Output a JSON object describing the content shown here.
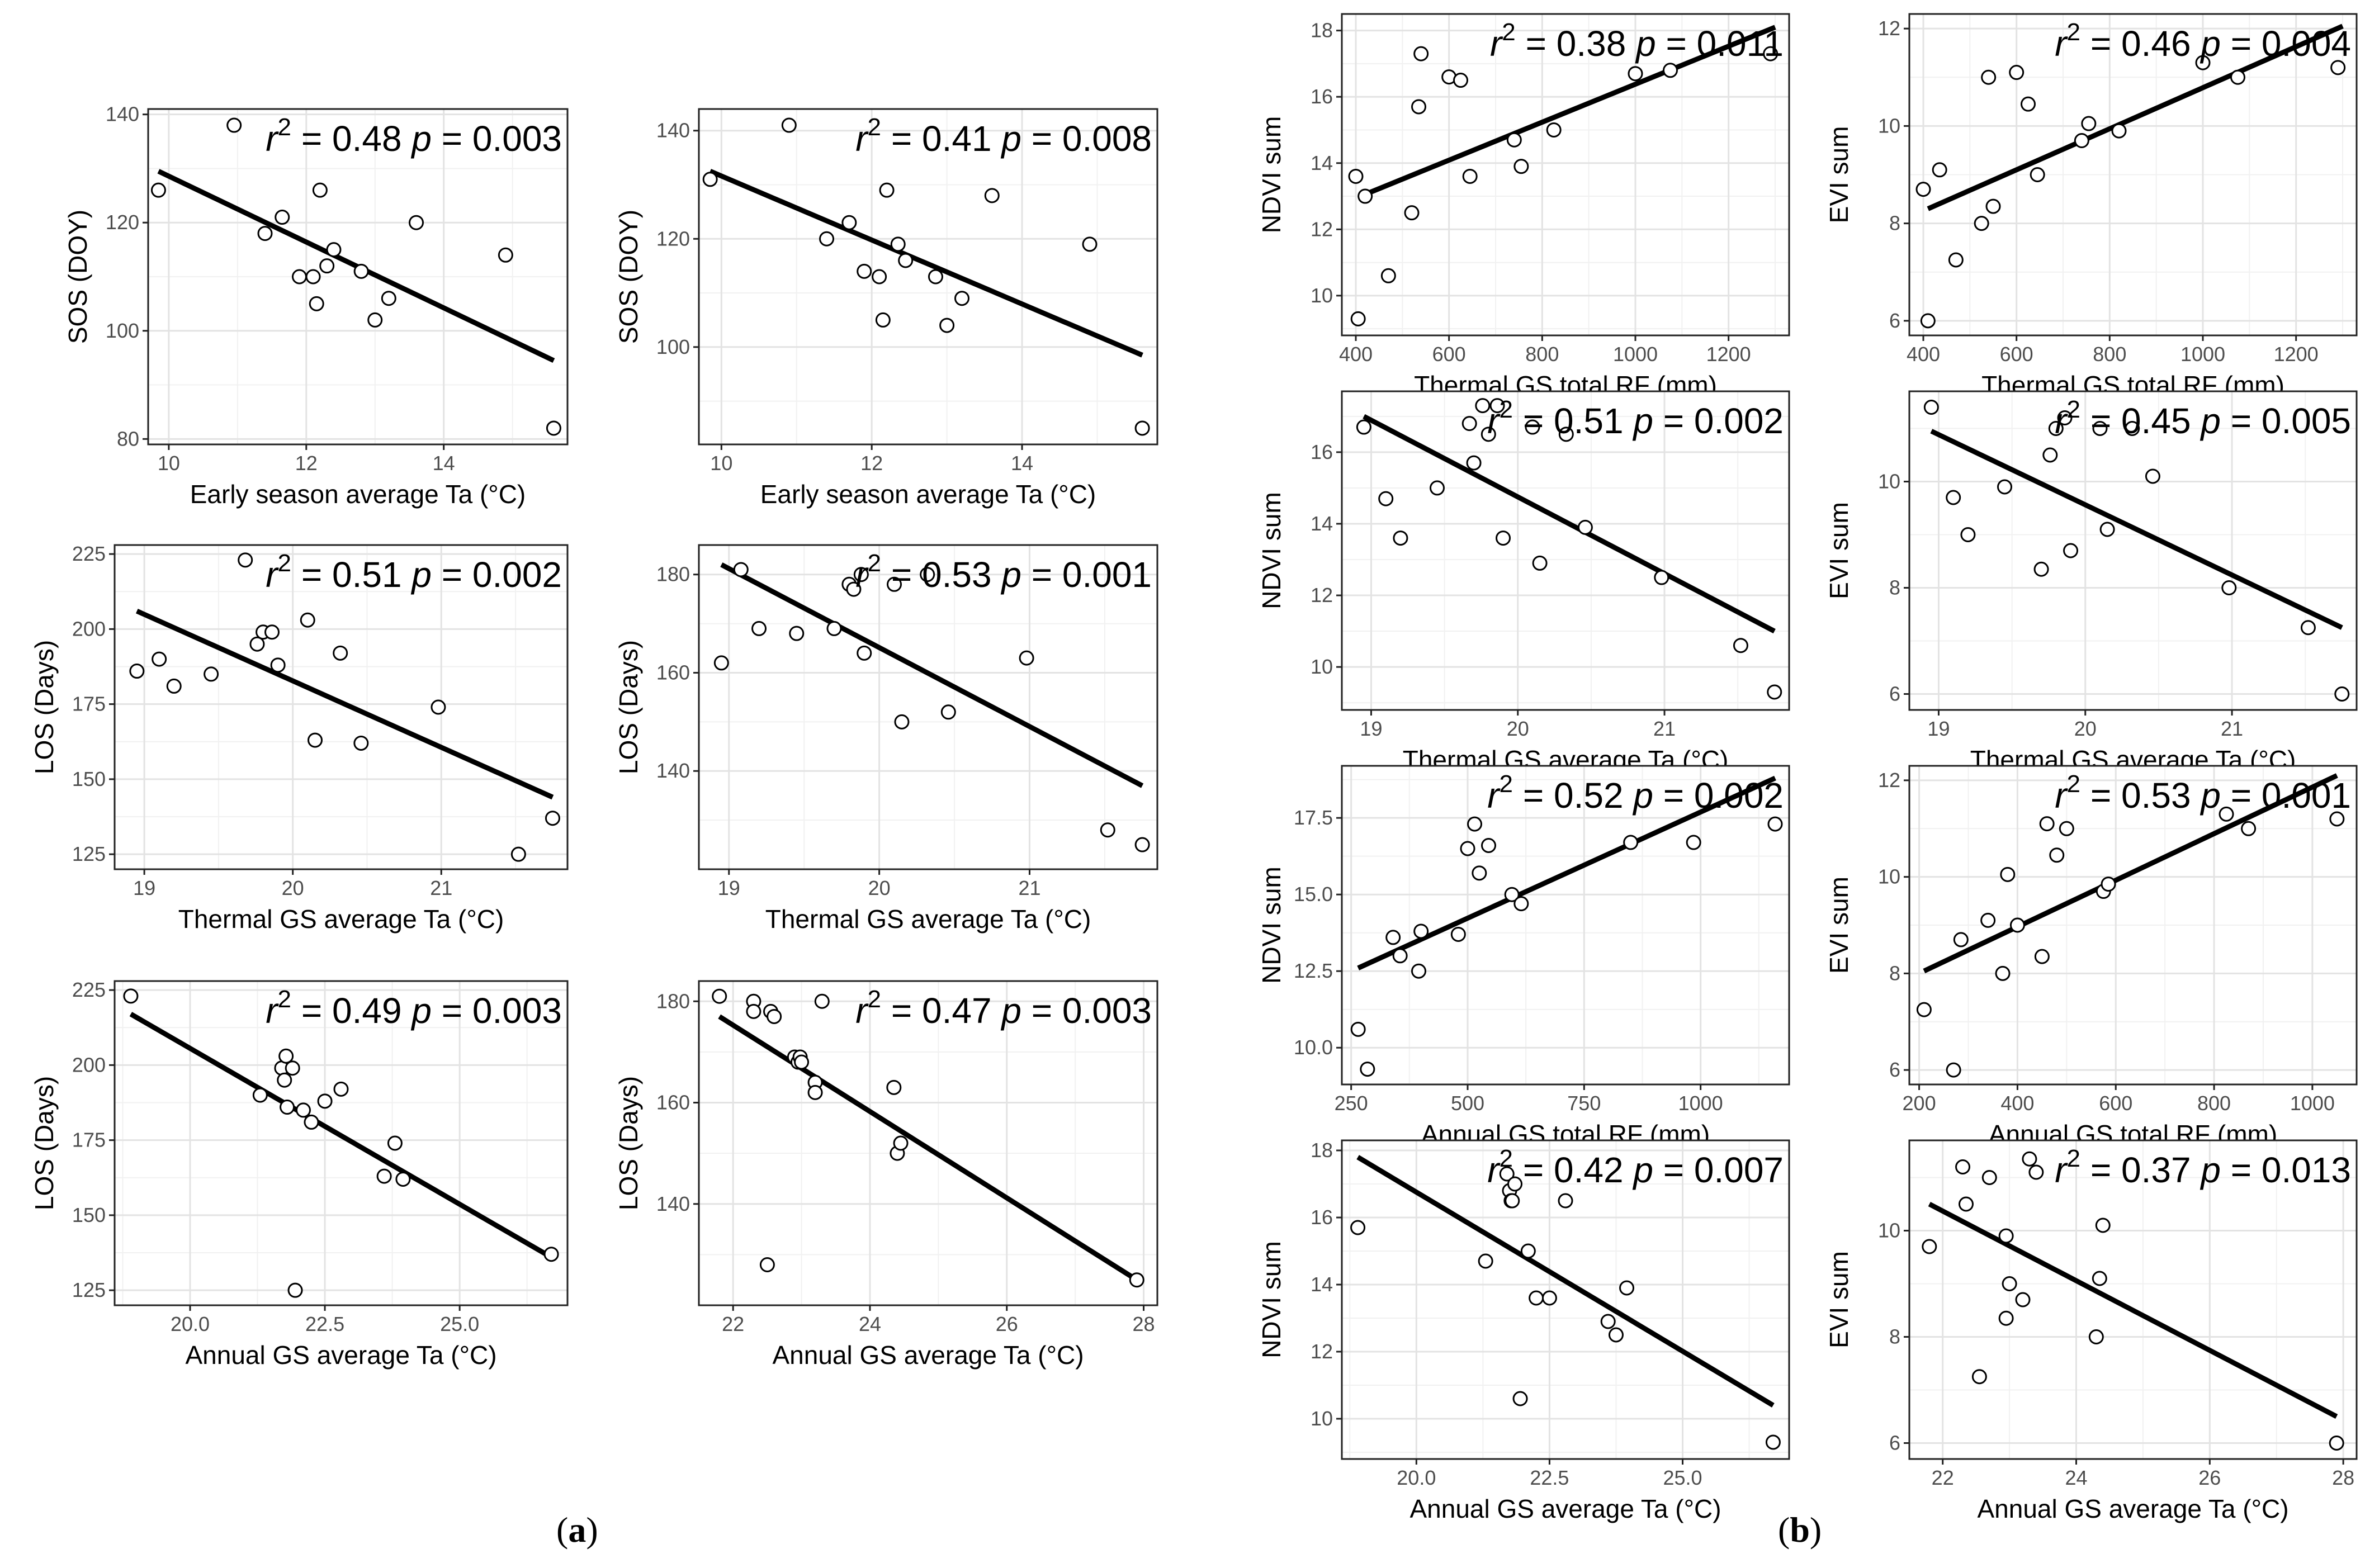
{
  "figure": {
    "labels": {
      "a": "a",
      "b": "b"
    }
  },
  "style": {
    "grid_major": "#e3e3e3",
    "grid_minor": "#f1f1f1",
    "axis": "#222222",
    "line": "#000000"
  },
  "chart_data": [
    {
      "id": "a1",
      "type": "scatter",
      "xlabel": "Early season average Ta (°C)",
      "ylabel": "SOS (DOY)",
      "r2": "0.48",
      "p": "0.003",
      "xlim": [
        9.7,
        15.8
      ],
      "ylim": [
        79,
        141
      ],
      "xticks": [
        10,
        12,
        14
      ],
      "xtick_labels": [
        "10",
        "12",
        "14"
      ],
      "yticks": [
        80,
        100,
        120,
        140
      ],
      "ytick_labels": [
        "80",
        "100",
        "120",
        "140"
      ],
      "x": [
        9.85,
        10.95,
        11.4,
        11.65,
        11.9,
        12.1,
        12.15,
        12.2,
        12.3,
        12.4,
        12.8,
        13.0,
        13.2,
        13.6,
        14.9,
        15.6
      ],
      "y": [
        126,
        138,
        118,
        121,
        110,
        110,
        105,
        126,
        112,
        115,
        111,
        102,
        106,
        120,
        114,
        82
      ],
      "fit": [
        [
          9.85,
          129.5
        ],
        [
          15.6,
          94.5
        ]
      ]
    },
    {
      "id": "a2",
      "type": "scatter",
      "xlabel": "Early season average Ta (°C)",
      "ylabel": "SOS (DOY)",
      "r2": "0.41",
      "p": "0.008",
      "xlim": [
        9.7,
        15.8
      ],
      "ylim": [
        82,
        144
      ],
      "xticks": [
        10,
        12,
        14
      ],
      "xtick_labels": [
        "10",
        "12",
        "14"
      ],
      "yticks": [
        100,
        120,
        140
      ],
      "ytick_labels": [
        "100",
        "120",
        "140"
      ],
      "x": [
        9.85,
        10.9,
        11.4,
        11.7,
        11.9,
        12.1,
        12.15,
        12.2,
        12.35,
        12.45,
        12.85,
        13.0,
        13.2,
        13.6,
        14.9,
        15.6
      ],
      "y": [
        131,
        141,
        120,
        123,
        114,
        113,
        105,
        129,
        119,
        116,
        113,
        104,
        109,
        128,
        119,
        85
      ],
      "fit": [
        [
          9.85,
          132.5
        ],
        [
          15.6,
          98.5
        ]
      ]
    },
    {
      "id": "a3",
      "type": "scatter",
      "xlabel": "Thermal GS average Ta (°C)",
      "ylabel": "LOS (Days)",
      "r2": "0.51",
      "p": "0.002",
      "xlim": [
        18.8,
        21.85
      ],
      "ylim": [
        120,
        228
      ],
      "xticks": [
        19,
        20,
        21
      ],
      "xtick_labels": [
        "19",
        "20",
        "21"
      ],
      "yticks": [
        125,
        150,
        175,
        200,
        225
      ],
      "ytick_labels": [
        "125",
        "150",
        "175",
        "200",
        "225"
      ],
      "x": [
        18.95,
        19.1,
        19.2,
        19.45,
        19.68,
        19.76,
        19.8,
        19.86,
        19.9,
        20.1,
        20.15,
        20.32,
        20.46,
        20.98,
        21.52,
        21.75
      ],
      "y": [
        186,
        190,
        181,
        185,
        223,
        195,
        199,
        199,
        188,
        203,
        163,
        192,
        162,
        174,
        125,
        137
      ],
      "fit": [
        [
          18.95,
          206
        ],
        [
          21.75,
          144
        ]
      ]
    },
    {
      "id": "a4",
      "type": "scatter",
      "xlabel": "Thermal GS average Ta (°C)",
      "ylabel": "LOS (Days)",
      "r2": "0.53",
      "p": "0.001",
      "xlim": [
        18.8,
        21.85
      ],
      "ylim": [
        120,
        186
      ],
      "xticks": [
        19,
        20,
        21
      ],
      "xtick_labels": [
        "19",
        "20",
        "21"
      ],
      "yticks": [
        140,
        160,
        180
      ],
      "ytick_labels": [
        "140",
        "160",
        "180"
      ],
      "x": [
        18.95,
        19.08,
        19.2,
        19.45,
        19.7,
        19.8,
        19.83,
        19.88,
        19.9,
        20.1,
        20.15,
        20.32,
        20.46,
        20.98,
        21.52,
        21.75
      ],
      "y": [
        162,
        181,
        169,
        168,
        169,
        178,
        177,
        180,
        164,
        178,
        150,
        180,
        152,
        163,
        128,
        125
      ],
      "fit": [
        [
          18.95,
          182
        ],
        [
          21.75,
          137
        ]
      ]
    },
    {
      "id": "a5",
      "type": "scatter",
      "xlabel": "Annual GS average Ta (°C)",
      "ylabel": "LOS (Days)",
      "r2": "0.49",
      "p": "0.003",
      "xlim": [
        18.6,
        27.0
      ],
      "ylim": [
        120,
        228
      ],
      "xticks": [
        20.0,
        22.5,
        25.0
      ],
      "xtick_labels": [
        "20.0",
        "22.5",
        "25.0"
      ],
      "yticks": [
        125,
        150,
        175,
        200,
        225
      ],
      "ytick_labels": [
        "125",
        "150",
        "175",
        "200",
        "225"
      ],
      "x": [
        18.9,
        21.3,
        21.7,
        21.75,
        21.78,
        21.8,
        21.95,
        22.1,
        22.25,
        22.5,
        22.8,
        23.6,
        23.8,
        23.95,
        21.9,
        26.7
      ],
      "y": [
        223,
        190,
        199,
        195,
        203,
        186,
        125,
        185,
        181,
        188,
        192,
        163,
        174,
        162,
        199,
        137
      ],
      "fit": [
        [
          18.9,
          217
        ],
        [
          26.7,
          136
        ]
      ]
    },
    {
      "id": "a6",
      "type": "scatter",
      "xlabel": "Annual GS average Ta (°C)",
      "ylabel": "LOS (Days)",
      "r2": "0.47",
      "p": "0.003",
      "xlim": [
        21.5,
        28.2
      ],
      "ylim": [
        120,
        184
      ],
      "xticks": [
        22,
        24,
        26,
        28
      ],
      "xtick_labels": [
        "22",
        "24",
        "26",
        "28"
      ],
      "yticks": [
        140,
        160,
        180
      ],
      "ytick_labels": [
        "140",
        "160",
        "180"
      ],
      "x": [
        21.8,
        22.3,
        22.3,
        22.55,
        22.6,
        22.9,
        22.95,
        22.98,
        23.0,
        23.2,
        23.2,
        23.3,
        24.35,
        24.4,
        24.45,
        22.5,
        27.9
      ],
      "y": [
        181,
        180,
        178,
        178,
        177,
        169,
        168,
        169,
        168,
        164,
        162,
        180,
        163,
        150,
        152,
        128,
        125
      ],
      "fit": [
        [
          21.8,
          177
        ],
        [
          27.9,
          125
        ]
      ]
    },
    {
      "id": "b1",
      "type": "scatter",
      "xlabel": "Thermal GS total RF (mm)",
      "ylabel": "NDVI sum",
      "r2": "0.38",
      "p": "0.011",
      "xlim": [
        370,
        1330
      ],
      "ylim": [
        8.8,
        18.5
      ],
      "xticks": [
        400,
        600,
        800,
        1000,
        1200
      ],
      "xtick_labels": [
        "400",
        "600",
        "800",
        "1000",
        "1200"
      ],
      "yticks": [
        10,
        12,
        14,
        16,
        18
      ],
      "ytick_labels": [
        "10",
        "12",
        "14",
        "16",
        "18"
      ],
      "x": [
        400,
        405,
        420,
        470,
        520,
        535,
        540,
        600,
        625,
        645,
        740,
        755,
        825,
        1000,
        1075,
        1290
      ],
      "y": [
        13.6,
        9.3,
        13.0,
        10.6,
        12.5,
        15.7,
        17.3,
        16.6,
        16.5,
        13.6,
        14.7,
        13.9,
        15.0,
        16.7,
        16.8,
        17.3
      ],
      "fit": [
        [
          410,
          13.0
        ],
        [
          1300,
          18.1
        ]
      ]
    },
    {
      "id": "b2",
      "type": "scatter",
      "xlabel": "Thermal GS total RF (mm)",
      "ylabel": "EVI sum",
      "r2": "0.46",
      "p": "0.004",
      "xlim": [
        370,
        1330
      ],
      "ylim": [
        5.7,
        12.3
      ],
      "xticks": [
        400,
        600,
        800,
        1000,
        1200
      ],
      "xtick_labels": [
        "400",
        "600",
        "800",
        "1000",
        "1200"
      ],
      "yticks": [
        6,
        8,
        10,
        12
      ],
      "ytick_labels": [
        "6",
        "8",
        "10",
        "12"
      ],
      "x": [
        400,
        410,
        435,
        470,
        525,
        540,
        550,
        600,
        625,
        645,
        740,
        755,
        820,
        1000,
        1075,
        1290
      ],
      "y": [
        8.7,
        6.0,
        9.1,
        7.25,
        8.0,
        11.0,
        8.35,
        11.1,
        10.45,
        9.0,
        9.7,
        10.05,
        9.9,
        11.3,
        11.0,
        11.2
      ],
      "fit": [
        [
          410,
          8.3
        ],
        [
          1300,
          12.05
        ]
      ]
    },
    {
      "id": "b3",
      "type": "scatter",
      "xlabel": "Thermal GS average Ta (°C)",
      "ylabel": "NDVI sum",
      "r2": "0.51",
      "p": "0.002",
      "xlim": [
        18.8,
        21.85
      ],
      "ylim": [
        8.8,
        17.7
      ],
      "xticks": [
        19,
        20,
        21
      ],
      "xtick_labels": [
        "19",
        "20",
        "21"
      ],
      "yticks": [
        10,
        12,
        14,
        16
      ],
      "ytick_labels": [
        "10",
        "12",
        "14",
        "16"
      ],
      "x": [
        18.95,
        19.1,
        19.2,
        19.45,
        19.67,
        19.7,
        19.76,
        19.8,
        19.86,
        19.9,
        20.1,
        20.15,
        20.33,
        20.46,
        20.98,
        21.52,
        21.75
      ],
      "y": [
        16.7,
        14.7,
        13.6,
        15.0,
        16.8,
        15.7,
        17.3,
        16.5,
        17.3,
        13.6,
        16.7,
        12.9,
        16.5,
        13.9,
        12.5,
        10.6,
        9.3
      ],
      "fit": [
        [
          18.95,
          17.0
        ],
        [
          21.75,
          11.0
        ]
      ]
    },
    {
      "id": "b4",
      "type": "scatter",
      "xlabel": "Thermal GS average Ta (°C)",
      "ylabel": "EVI sum",
      "r2": "0.45",
      "p": "0.005",
      "xlim": [
        18.8,
        21.85
      ],
      "ylim": [
        5.7,
        11.7
      ],
      "xticks": [
        19,
        20,
        21
      ],
      "xtick_labels": [
        "19",
        "20",
        "21"
      ],
      "yticks": [
        6,
        8,
        10
      ],
      "ytick_labels": [
        "6",
        "8",
        "10"
      ],
      "x": [
        18.95,
        19.1,
        19.2,
        19.45,
        19.7,
        19.76,
        19.8,
        19.86,
        19.9,
        20.1,
        20.15,
        20.32,
        20.46,
        20.98,
        21.52,
        21.75
      ],
      "y": [
        11.4,
        9.7,
        9.0,
        9.9,
        8.35,
        10.5,
        11.0,
        11.2,
        8.7,
        11.0,
        9.1,
        11.0,
        10.1,
        8.0,
        7.25,
        6.0
      ],
      "fit": [
        [
          18.95,
          10.95
        ],
        [
          21.75,
          7.25
        ]
      ]
    },
    {
      "id": "b5",
      "type": "scatter",
      "xlabel": "Annual GS total RF (mm)",
      "ylabel": "NDVI sum",
      "r2": "0.52",
      "p": "0.002",
      "xlim": [
        230,
        1190
      ],
      "ylim": [
        8.8,
        19.2
      ],
      "xticks": [
        250,
        500,
        750,
        1000
      ],
      "xtick_labels": [
        "250",
        "500",
        "750",
        "1000"
      ],
      "yticks": [
        10.0,
        12.5,
        15.0,
        17.5
      ],
      "ytick_labels": [
        "10.0",
        "12.5",
        "15.0",
        "17.5"
      ],
      "x": [
        265,
        285,
        340,
        355,
        395,
        400,
        480,
        500,
        515,
        525,
        545,
        595,
        615,
        850,
        985,
        1160
      ],
      "y": [
        10.6,
        9.3,
        13.6,
        13.0,
        12.5,
        13.8,
        13.7,
        16.5,
        17.3,
        15.7,
        16.6,
        15.0,
        14.7,
        16.7,
        16.7,
        17.3
      ],
      "fit": [
        [
          265,
          12.6
        ],
        [
          1160,
          18.8
        ]
      ]
    },
    {
      "id": "b6",
      "type": "scatter",
      "xlabel": "Annual GS total RF (mm)",
      "ylabel": "EVI sum",
      "r2": "0.53",
      "p": "0.001",
      "xlim": [
        180,
        1090
      ],
      "ylim": [
        5.7,
        12.3
      ],
      "xticks": [
        200,
        400,
        600,
        800,
        1000
      ],
      "xtick_labels": [
        "200",
        "400",
        "600",
        "800",
        "1000"
      ],
      "yticks": [
        6,
        8,
        10,
        12
      ],
      "ytick_labels": [
        "6",
        "8",
        "10",
        "12"
      ],
      "x": [
        210,
        270,
        285,
        340,
        370,
        380,
        400,
        450,
        460,
        480,
        500,
        575,
        585,
        825,
        870,
        1050
      ],
      "y": [
        7.25,
        6.0,
        8.7,
        9.1,
        8.0,
        10.05,
        9.0,
        8.35,
        11.1,
        10.45,
        11.0,
        9.7,
        9.85,
        11.3,
        11.0,
        11.2
      ],
      "fit": [
        [
          210,
          8.05
        ],
        [
          1050,
          12.1
        ]
      ]
    },
    {
      "id": "b7",
      "type": "scatter",
      "xlabel": "Annual GS average Ta (°C)",
      "ylabel": "NDVI sum",
      "r2": "0.42",
      "p": "0.007",
      "xlim": [
        18.6,
        27.0
      ],
      "ylim": [
        8.8,
        18.3
      ],
      "xticks": [
        20.0,
        22.5,
        25.0
      ],
      "xtick_labels": [
        "20.0",
        "22.5",
        "25.0"
      ],
      "yticks": [
        10,
        12,
        14,
        16,
        18
      ],
      "ytick_labels": [
        "10",
        "12",
        "14",
        "16",
        "18"
      ],
      "x": [
        18.9,
        21.3,
        21.7,
        21.75,
        21.78,
        21.8,
        21.95,
        22.1,
        22.25,
        22.5,
        22.8,
        23.6,
        23.75,
        23.95,
        21.85,
        26.7
      ],
      "y": [
        15.7,
        14.7,
        17.3,
        16.8,
        16.5,
        16.5,
        10.6,
        15.0,
        13.6,
        13.6,
        16.5,
        12.9,
        12.5,
        13.9,
        17.0,
        9.3
      ],
      "fit": [
        [
          18.9,
          17.8
        ],
        [
          26.7,
          10.4
        ]
      ]
    },
    {
      "id": "b8",
      "type": "scatter",
      "xlabel": "Annual GS average Ta (°C)",
      "ylabel": "EVI sum",
      "r2": "0.37",
      "p": "0.013",
      "xlim": [
        21.5,
        28.2
      ],
      "ylim": [
        5.7,
        11.7
      ],
      "xticks": [
        22,
        24,
        26,
        28
      ],
      "xtick_labels": [
        "22",
        "24",
        "26",
        "28"
      ],
      "yticks": [
        6,
        8,
        10
      ],
      "ytick_labels": [
        "6",
        "8",
        "10"
      ],
      "x": [
        21.8,
        22.3,
        22.35,
        22.55,
        22.7,
        22.95,
        23.0,
        23.2,
        23.3,
        23.4,
        24.3,
        24.35,
        24.4,
        22.95,
        27.9
      ],
      "y": [
        9.7,
        11.2,
        10.5,
        7.25,
        11.0,
        8.35,
        9.0,
        8.7,
        11.35,
        11.1,
        8.0,
        9.1,
        10.1,
        9.9,
        6.0
      ],
      "fit": [
        [
          21.8,
          10.5
        ],
        [
          27.9,
          6.5
        ]
      ]
    }
  ]
}
